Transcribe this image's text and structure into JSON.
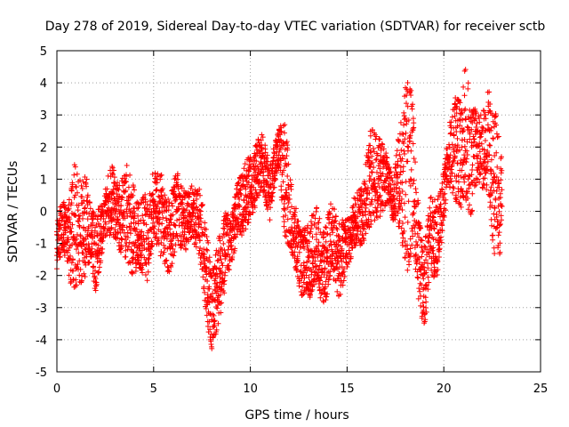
{
  "chart_data": {
    "type": "scatter",
    "title": "Day 278 of 2019, Sidereal Day-to-day VTEC variation (SDTVAR) for receiver sctb",
    "xlabel": "GPS time / hours",
    "ylabel": "SDTVAR / TECUs",
    "xlim": [
      0,
      25
    ],
    "ylim": [
      -5,
      5
    ],
    "x_ticks": [
      0,
      5,
      10,
      15,
      20,
      25
    ],
    "x_tick_labels": [
      "0",
      "5",
      "10",
      "15",
      "20",
      "25"
    ],
    "y_ticks": [
      -5,
      -4,
      -3,
      -2,
      -1,
      0,
      1,
      2,
      3,
      4,
      5
    ],
    "y_tick_labels": [
      "-5",
      "-4",
      "-3",
      "-2",
      "-1",
      "0",
      "1",
      "2",
      "3",
      "4",
      "5"
    ],
    "grid": true,
    "marker": "+",
    "color": "#ff0000",
    "x_range_of_data": [
      0,
      23
    ],
    "series": [
      {
        "name": "SDTVAR",
        "envelope": [
          {
            "x": 0.0,
            "low": -1.8,
            "high": -0.1
          },
          {
            "x": 0.3,
            "low": -1.2,
            "high": 0.3
          },
          {
            "x": 0.6,
            "low": -2.2,
            "high": 0.2
          },
          {
            "x": 0.9,
            "low": -2.4,
            "high": 1.6
          },
          {
            "x": 1.2,
            "low": -2.3,
            "high": 1.0
          },
          {
            "x": 1.5,
            "low": -2.0,
            "high": 1.2
          },
          {
            "x": 1.8,
            "low": -1.5,
            "high": 0.1
          },
          {
            "x": 2.0,
            "low": -2.7,
            "high": 0.0
          },
          {
            "x": 2.4,
            "low": -1.0,
            "high": 0.3
          },
          {
            "x": 2.8,
            "low": -0.7,
            "high": 1.6
          },
          {
            "x": 3.2,
            "low": -1.2,
            "high": 0.8
          },
          {
            "x": 3.6,
            "low": -1.5,
            "high": 1.5
          },
          {
            "x": 3.9,
            "low": -2.0,
            "high": 0.9
          },
          {
            "x": 4.3,
            "low": -1.8,
            "high": 0.4
          },
          {
            "x": 4.7,
            "low": -2.2,
            "high": 0.6
          },
          {
            "x": 5.0,
            "low": -0.8,
            "high": 1.4
          },
          {
            "x": 5.4,
            "low": -1.5,
            "high": 1.3
          },
          {
            "x": 5.8,
            "low": -2.0,
            "high": 0.3
          },
          {
            "x": 6.2,
            "low": -1.0,
            "high": 1.3
          },
          {
            "x": 6.6,
            "low": -1.3,
            "high": 0.6
          },
          {
            "x": 7.0,
            "low": -0.9,
            "high": 0.8
          },
          {
            "x": 7.4,
            "low": -1.6,
            "high": 0.7
          },
          {
            "x": 7.8,
            "low": -3.6,
            "high": -0.8
          },
          {
            "x": 8.0,
            "low": -4.4,
            "high": -2.0
          },
          {
            "x": 8.3,
            "low": -3.9,
            "high": -1.0
          },
          {
            "x": 8.7,
            "low": -2.4,
            "high": 0.0
          },
          {
            "x": 9.0,
            "low": -1.6,
            "high": -0.2
          },
          {
            "x": 9.4,
            "low": -0.9,
            "high": 1.2
          },
          {
            "x": 9.8,
            "low": -0.5,
            "high": 1.6
          },
          {
            "x": 10.2,
            "low": 0.0,
            "high": 1.9
          },
          {
            "x": 10.6,
            "low": 0.8,
            "high": 2.8
          },
          {
            "x": 11.0,
            "low": -0.4,
            "high": 1.3
          },
          {
            "x": 11.4,
            "low": 1.4,
            "high": 2.6
          },
          {
            "x": 11.8,
            "low": -0.8,
            "high": 2.8
          },
          {
            "x": 12.2,
            "low": -1.5,
            "high": 0.5
          },
          {
            "x": 12.6,
            "low": -2.6,
            "high": -0.6
          },
          {
            "x": 13.0,
            "low": -2.8,
            "high": -0.4
          },
          {
            "x": 13.4,
            "low": -2.2,
            "high": 0.2
          },
          {
            "x": 13.8,
            "low": -3.1,
            "high": -0.6
          },
          {
            "x": 14.2,
            "low": -2.0,
            "high": 0.4
          },
          {
            "x": 14.6,
            "low": -2.8,
            "high": -0.3
          },
          {
            "x": 15.0,
            "low": -1.8,
            "high": -0.2
          },
          {
            "x": 15.4,
            "low": -1.2,
            "high": 0.5
          },
          {
            "x": 15.8,
            "low": -1.0,
            "high": 0.8
          },
          {
            "x": 16.2,
            "low": -0.5,
            "high": 2.7
          },
          {
            "x": 16.6,
            "low": -0.3,
            "high": 2.4
          },
          {
            "x": 17.0,
            "low": 0.2,
            "high": 1.9
          },
          {
            "x": 17.4,
            "low": -0.3,
            "high": 1.0
          },
          {
            "x": 17.8,
            "low": -0.8,
            "high": 3.0
          },
          {
            "x": 18.1,
            "low": -2.2,
            "high": 4.3
          },
          {
            "x": 18.4,
            "low": -1.0,
            "high": 3.5
          },
          {
            "x": 18.7,
            "low": -2.8,
            "high": 0.2
          },
          {
            "x": 19.0,
            "low": -3.8,
            "high": -1.0
          },
          {
            "x": 19.3,
            "low": -2.0,
            "high": 0.5
          },
          {
            "x": 19.6,
            "low": -2.2,
            "high": 0.4
          },
          {
            "x": 19.9,
            "low": -1.0,
            "high": 0.8
          },
          {
            "x": 20.2,
            "low": 0.7,
            "high": 2.4
          },
          {
            "x": 20.5,
            "low": 0.5,
            "high": 3.4
          },
          {
            "x": 20.8,
            "low": -0.1,
            "high": 4.0
          },
          {
            "x": 21.1,
            "low": 0.2,
            "high": 4.8
          },
          {
            "x": 21.4,
            "low": -0.3,
            "high": 3.5
          },
          {
            "x": 21.7,
            "low": 0.9,
            "high": 3.2
          },
          {
            "x": 22.0,
            "low": 0.7,
            "high": 3.0
          },
          {
            "x": 22.3,
            "low": 0.5,
            "high": 3.9
          },
          {
            "x": 22.6,
            "low": -1.5,
            "high": 3.1
          },
          {
            "x": 22.9,
            "low": -1.4,
            "high": 3.0
          },
          {
            "x": 23.0,
            "low": -0.2,
            "high": 2.2
          }
        ]
      }
    ]
  }
}
